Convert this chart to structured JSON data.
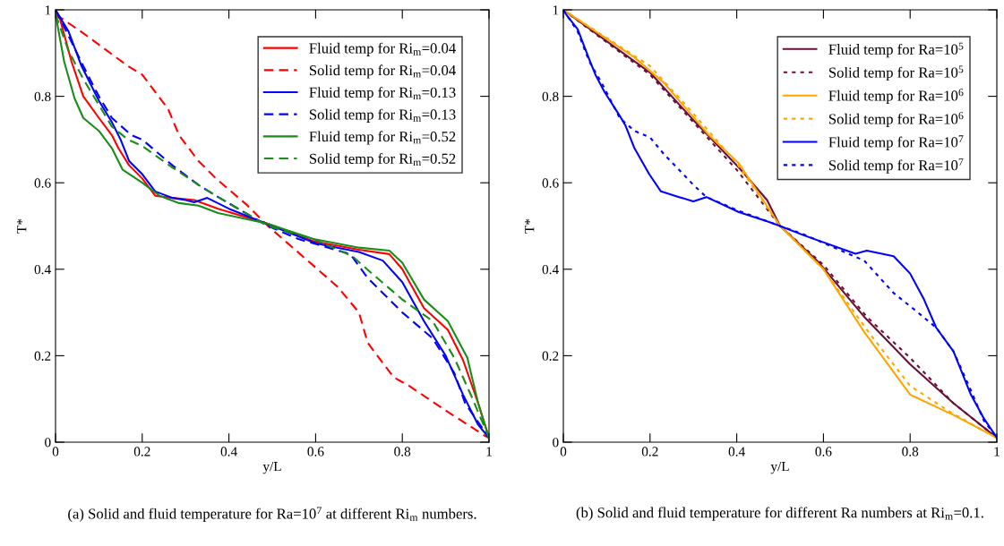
{
  "chart_data": [
    {
      "type": "line",
      "xlabel": "y/L",
      "ylabel": "T*",
      "xlim": [
        0,
        1
      ],
      "ylim": [
        0,
        1
      ],
      "xticks": [
        0,
        0.2,
        0.4,
        0.6,
        0.8,
        1
      ],
      "yticks": [
        0,
        0.2,
        0.4,
        0.6,
        0.8,
        1
      ],
      "grid": false,
      "legend": "top right",
      "annotations": [
        "(a) Solid and fluid temperature for Ra=10$^{7}$ at different Ri$_{m}$ numbers."
      ],
      "series": [
        {
          "name": "Fluid temp for Ri$_{m}$=0.04",
          "color": "#ff0000",
          "line_style": "solid",
          "x": [
            0,
            0.01,
            0.037,
            0.064,
            0.1,
            0.13,
            0.145,
            0.17,
            0.2,
            0.23,
            0.27,
            0.32,
            0.375,
            0.49,
            0.595,
            0.7,
            0.77,
            0.8,
            0.85,
            0.905,
            0.94,
            0.975,
            1
          ],
          "values": [
            0.99,
            0.98,
            0.88,
            0.8,
            0.75,
            0.71,
            0.68,
            0.64,
            0.61,
            0.57,
            0.565,
            0.56,
            0.54,
            0.505,
            0.465,
            0.445,
            0.435,
            0.4,
            0.31,
            0.26,
            0.19,
            0.09,
            0.01
          ]
        },
        {
          "name": "Solid temp for Ri$_{m}$=0.04",
          "color": "#ff0000",
          "line_style": "dashed",
          "x": [
            0,
            0.064,
            0.167,
            0.2,
            0.26,
            0.285,
            0.33,
            0.37,
            0.44,
            0.49,
            0.65,
            0.7,
            0.72,
            0.78,
            0.816,
            0.905,
            0.99,
            1
          ],
          "values": [
            0.99,
            0.946,
            0.87,
            0.85,
            0.77,
            0.71,
            0.65,
            0.61,
            0.55,
            0.5,
            0.36,
            0.3,
            0.23,
            0.15,
            0.13,
            0.07,
            0.015,
            0.01
          ]
        },
        {
          "name": "Fluid temp for Ri$_{m}$=0.13",
          "color": "#0000ff",
          "line_style": "solid",
          "x": [
            0,
            0.03,
            0.06,
            0.1,
            0.13,
            0.15,
            0.17,
            0.2,
            0.23,
            0.27,
            0.3,
            0.32,
            0.35,
            0.4,
            0.5,
            0.6,
            0.65,
            0.7,
            0.755,
            0.8,
            0.85,
            0.9,
            0.94,
            0.975,
            1
          ],
          "values": [
            1,
            0.95,
            0.87,
            0.79,
            0.74,
            0.7,
            0.65,
            0.62,
            0.58,
            0.565,
            0.56,
            0.555,
            0.565,
            0.54,
            0.5,
            0.46,
            0.45,
            0.44,
            0.42,
            0.37,
            0.28,
            0.2,
            0.11,
            0.04,
            0.01
          ]
        },
        {
          "name": "Solid temp for Ri$_{m}$=0.13",
          "color": "#0000ff",
          "line_style": "dashed",
          "x": [
            0,
            0.03,
            0.064,
            0.1,
            0.13,
            0.175,
            0.2,
            0.27,
            0.33,
            0.375,
            0.49,
            0.56,
            0.68,
            0.72,
            0.8,
            0.87,
            0.92,
            0.945,
            1
          ],
          "values": [
            1,
            0.94,
            0.87,
            0.8,
            0.75,
            0.71,
            0.7,
            0.64,
            0.595,
            0.567,
            0.5,
            0.47,
            0.435,
            0.38,
            0.3,
            0.24,
            0.16,
            0.09,
            0.01
          ]
        },
        {
          "name": "Fluid temp for Ri$_{m}$=0.52",
          "color": "#1a8c1a",
          "line_style": "solid",
          "x": [
            0,
            0.02,
            0.044,
            0.064,
            0.1,
            0.13,
            0.155,
            0.2,
            0.24,
            0.285,
            0.33,
            0.375,
            0.49,
            0.595,
            0.7,
            0.77,
            0.8,
            0.85,
            0.905,
            0.95,
            0.975,
            1
          ],
          "values": [
            0.99,
            0.88,
            0.795,
            0.75,
            0.72,
            0.68,
            0.63,
            0.6,
            0.57,
            0.553,
            0.547,
            0.53,
            0.505,
            0.47,
            0.45,
            0.443,
            0.415,
            0.33,
            0.28,
            0.195,
            0.09,
            0.01
          ]
        },
        {
          "name": "Solid temp for Ri$_{m}$=0.52",
          "color": "#1a8c1a",
          "line_style": "dashed",
          "x": [
            0,
            0.03,
            0.064,
            0.1,
            0.13,
            0.167,
            0.2,
            0.27,
            0.33,
            0.375,
            0.49,
            0.595,
            0.685,
            0.73,
            0.8,
            0.87,
            0.92,
            0.96,
            1
          ],
          "values": [
            0.99,
            0.905,
            0.84,
            0.78,
            0.73,
            0.7,
            0.685,
            0.635,
            0.595,
            0.567,
            0.5,
            0.47,
            0.43,
            0.39,
            0.33,
            0.28,
            0.195,
            0.105,
            0.01
          ]
        }
      ]
    },
    {
      "type": "line",
      "xlabel": "y/L",
      "ylabel": "T*",
      "xlim": [
        0,
        1
      ],
      "ylim": [
        0,
        1
      ],
      "xticks": [
        0,
        0.2,
        0.4,
        0.6,
        0.8,
        1
      ],
      "yticks": [
        0,
        0.2,
        0.4,
        0.6,
        0.8,
        1
      ],
      "grid": false,
      "legend": "top right",
      "annotations": [
        "(b) Solid and fluid temperature for different Ra numbers at Ri$_{m}$=0.1."
      ],
      "series": [
        {
          "name": "Fluid temp for Ra=10$^{5}$",
          "color": "#6b0f3a",
          "line_style": "solid",
          "x": [
            0,
            0.2,
            0.3,
            0.405,
            0.47,
            0.5,
            0.59,
            0.694,
            0.8,
            0.9,
            1
          ],
          "values": [
            1,
            0.855,
            0.745,
            0.635,
            0.56,
            0.5,
            0.415,
            0.29,
            0.18,
            0.09,
            0.01
          ]
        },
        {
          "name": "Solid temp for Ra=10$^{5}$",
          "color": "#6b0f3a",
          "line_style": "dotted",
          "x": [
            0,
            0.2,
            0.3,
            0.4,
            0.5,
            0.6,
            0.7,
            0.8,
            0.9,
            1
          ],
          "values": [
            1,
            0.85,
            0.74,
            0.63,
            0.5,
            0.41,
            0.29,
            0.195,
            0.09,
            0.01
          ]
        },
        {
          "name": "Fluid temp for Ra=10$^{6}$",
          "color": "#ffa500",
          "line_style": "solid",
          "x": [
            0,
            0.164,
            0.233,
            0.28,
            0.336,
            0.405,
            0.5,
            0.6,
            0.694,
            0.8,
            0.9,
            1
          ],
          "values": [
            1,
            0.89,
            0.83,
            0.775,
            0.71,
            0.645,
            0.5,
            0.4,
            0.255,
            0.11,
            0.063,
            0.01
          ]
        },
        {
          "name": "Solid temp for Ra=10$^{6}$",
          "color": "#ffa500",
          "line_style": "dotted",
          "x": [
            0,
            0.2,
            0.3,
            0.4,
            0.5,
            0.6,
            0.7,
            0.8,
            0.9,
            1
          ],
          "values": [
            1,
            0.87,
            0.76,
            0.645,
            0.5,
            0.4,
            0.26,
            0.13,
            0.065,
            0.01
          ]
        },
        {
          "name": "Fluid temp for Ra=10$^{7}$",
          "color": "#0000ff",
          "line_style": "solid",
          "x": [
            0,
            0.006,
            0.033,
            0.06,
            0.074,
            0.095,
            0.13,
            0.143,
            0.164,
            0.198,
            0.225,
            0.267,
            0.3,
            0.33,
            0.405,
            0.473,
            0.5,
            0.556,
            0.674,
            0.7,
            0.762,
            0.8,
            0.832,
            0.86,
            0.9,
            0.94,
            0.97,
            1
          ],
          "values": [
            1,
            0.99,
            0.955,
            0.885,
            0.85,
            0.81,
            0.755,
            0.733,
            0.68,
            0.62,
            0.58,
            0.567,
            0.557,
            0.567,
            0.532,
            0.51,
            0.5,
            0.478,
            0.436,
            0.443,
            0.43,
            0.39,
            0.33,
            0.265,
            0.21,
            0.11,
            0.055,
            0.01
          ]
        },
        {
          "name": "Solid temp for Ra=10$^{7}$",
          "color": "#0000ff",
          "line_style": "dotted",
          "x": [
            0,
            0.033,
            0.06,
            0.089,
            0.13,
            0.164,
            0.2,
            0.233,
            0.267,
            0.3,
            0.33,
            0.405,
            0.5,
            0.556,
            0.694,
            0.762,
            0.818,
            0.86,
            0.9,
            0.94,
            0.97,
            1
          ],
          "values": [
            1,
            0.95,
            0.88,
            0.83,
            0.75,
            0.72,
            0.705,
            0.665,
            0.63,
            0.595,
            0.567,
            0.535,
            0.5,
            0.48,
            0.42,
            0.345,
            0.3,
            0.265,
            0.21,
            0.12,
            0.05,
            0.01
          ]
        }
      ]
    }
  ]
}
